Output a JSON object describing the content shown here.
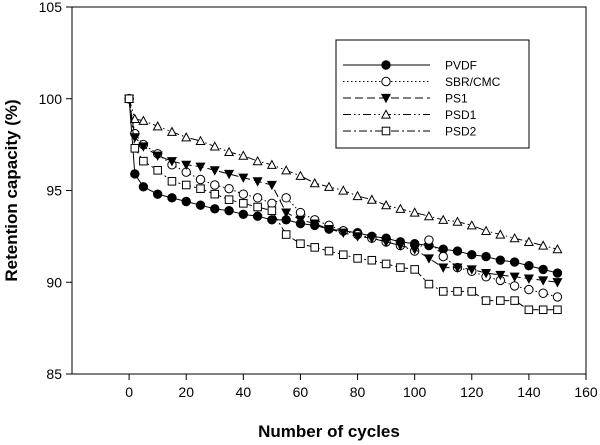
{
  "chart_data": {
    "type": "line",
    "title": "",
    "xlabel": "Number of cycles",
    "ylabel": "Retention capacity (%)",
    "xlim": [
      -20,
      160
    ],
    "ylim": [
      85,
      105
    ],
    "xticks": [
      0,
      20,
      40,
      60,
      80,
      100,
      120,
      140,
      160
    ],
    "yticks": [
      85,
      90,
      95,
      100,
      105
    ],
    "grid": false,
    "legend_position": "top-right",
    "series": [
      {
        "name": "PVDF",
        "line_style": "solid",
        "marker": "filled-circle",
        "x": [
          0,
          2,
          5,
          10,
          15,
          20,
          25,
          30,
          35,
          40,
          45,
          50,
          55,
          60,
          65,
          70,
          75,
          80,
          85,
          90,
          95,
          100,
          105,
          110,
          115,
          120,
          125,
          130,
          135,
          140,
          145,
          150
        ],
        "y": [
          100,
          95.9,
          95.2,
          94.8,
          94.6,
          94.4,
          94.2,
          94.0,
          93.9,
          93.7,
          93.6,
          93.4,
          93.4,
          93.2,
          93.1,
          92.9,
          92.8,
          92.7,
          92.5,
          92.4,
          92.2,
          92.1,
          92.0,
          91.8,
          91.7,
          91.5,
          91.4,
          91.2,
          91.1,
          90.9,
          90.7,
          90.5
        ]
      },
      {
        "name": "SBR/CMC",
        "line_style": "dotted",
        "marker": "open-circle",
        "x": [
          0,
          2,
          5,
          10,
          15,
          20,
          25,
          30,
          35,
          40,
          45,
          50,
          55,
          60,
          65,
          70,
          75,
          80,
          85,
          90,
          95,
          100,
          105,
          110,
          115,
          120,
          125,
          130,
          135,
          140,
          145,
          150
        ],
        "y": [
          100,
          98.1,
          97.5,
          97.0,
          96.4,
          96.0,
          95.6,
          95.3,
          95.1,
          94.8,
          94.6,
          94.3,
          94.6,
          93.8,
          93.4,
          93.1,
          92.8,
          92.6,
          92.4,
          92.2,
          92.0,
          91.7,
          92.3,
          91.4,
          90.8,
          90.6,
          90.3,
          90.1,
          89.8,
          89.6,
          89.4,
          89.2
        ]
      },
      {
        "name": "PS1",
        "line_style": "dashed",
        "marker": "filled-triangle-down",
        "x": [
          0,
          2,
          5,
          10,
          15,
          20,
          25,
          30,
          35,
          40,
          45,
          50,
          55,
          60,
          65,
          70,
          75,
          80,
          85,
          90,
          95,
          100,
          105,
          110,
          115,
          120,
          125,
          130,
          135,
          140,
          145,
          150
        ],
        "y": [
          100,
          97.9,
          97.4,
          96.9,
          96.6,
          96.4,
          96.3,
          96.1,
          95.9,
          95.7,
          95.5,
          95.3,
          93.8,
          93.4,
          93.2,
          92.9,
          92.7,
          92.5,
          92.4,
          92.2,
          92.0,
          91.8,
          91.3,
          90.8,
          90.8,
          90.7,
          90.5,
          90.4,
          90.3,
          90.2,
          90.1,
          90.0
        ]
      },
      {
        "name": "PSD1",
        "line_style": "dash-dot-dot",
        "marker": "open-triangle-up",
        "x": [
          0,
          2,
          5,
          10,
          15,
          20,
          25,
          30,
          35,
          40,
          45,
          50,
          55,
          60,
          65,
          70,
          75,
          80,
          85,
          90,
          95,
          100,
          105,
          110,
          115,
          120,
          125,
          130,
          135,
          140,
          145,
          150
        ],
        "y": [
          100,
          98.9,
          98.8,
          98.5,
          98.2,
          97.9,
          97.7,
          97.4,
          97.1,
          96.9,
          96.6,
          96.4,
          96.1,
          95.8,
          95.4,
          95.2,
          95.0,
          94.7,
          94.5,
          94.2,
          94.0,
          93.8,
          93.6,
          93.4,
          93.3,
          93.1,
          92.8,
          92.6,
          92.4,
          92.2,
          92.0,
          91.8
        ]
      },
      {
        "name": "PSD2",
        "line_style": "dash-dot",
        "marker": "open-square",
        "x": [
          0,
          2,
          5,
          10,
          15,
          20,
          25,
          30,
          35,
          40,
          45,
          50,
          55,
          60,
          65,
          70,
          75,
          80,
          85,
          90,
          95,
          100,
          105,
          110,
          115,
          120,
          125,
          130,
          135,
          140,
          145,
          150
        ],
        "y": [
          100,
          97.3,
          96.6,
          96.1,
          95.5,
          95.3,
          95.1,
          94.8,
          94.5,
          94.3,
          94.1,
          93.9,
          92.6,
          92.1,
          91.9,
          91.7,
          91.5,
          91.3,
          91.2,
          91.0,
          90.8,
          90.7,
          89.9,
          89.5,
          89.5,
          89.5,
          89.0,
          89.0,
          89.0,
          88.5,
          88.5,
          88.5
        ]
      }
    ]
  }
}
